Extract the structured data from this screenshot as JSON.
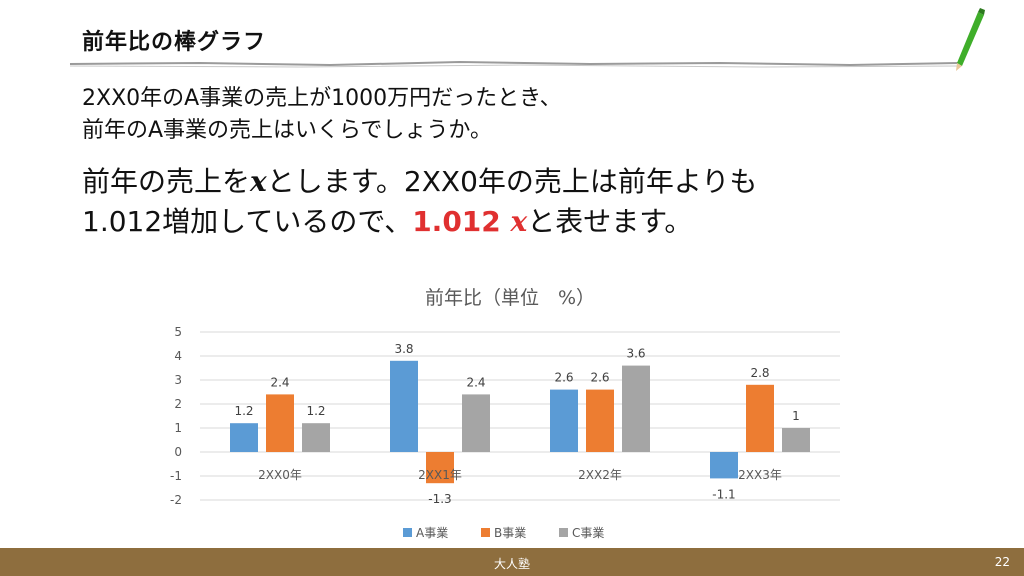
{
  "slide_title": "前年比の棒グラフ",
  "question": {
    "line1": "2XX0年のA事業の売上が1000万円だったとき、",
    "line2": "前年のA事業の売上はいくらでしょうか。"
  },
  "answer": {
    "line1_prefix": "前年の売上を",
    "var": "x",
    "line1_suffix": "とします。2XX0年の売上は前年よりも",
    "line2_prefix": "1.012増加しているので、",
    "highlight": "1.012 ",
    "line2_suffix": "と表せます。"
  },
  "chart_data": {
    "type": "bar",
    "title": "前年比（単位　%）",
    "categories": [
      "2XX0年",
      "2XX1年",
      "2XX2年",
      "2XX3年"
    ],
    "series": [
      {
        "name": "A事業",
        "color": "#5b9bd5",
        "values": [
          1.2,
          3.8,
          2.6,
          -1.1
        ]
      },
      {
        "name": "B事業",
        "color": "#ed7d31",
        "values": [
          2.4,
          -1.3,
          2.6,
          2.8
        ]
      },
      {
        "name": "C事業",
        "color": "#a5a5a5",
        "values": [
          1.2,
          2.4,
          3.6,
          1
        ]
      }
    ],
    "ylim": [
      -2,
      5
    ],
    "yticks": [
      5,
      4,
      3,
      2,
      1,
      0,
      -1,
      -2
    ],
    "grid": true,
    "legend": "bottom"
  },
  "footer": {
    "brand": "大人塾",
    "page": "22"
  }
}
